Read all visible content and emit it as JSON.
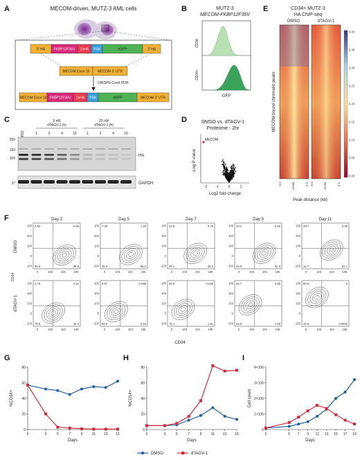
{
  "panels": {
    "A": {
      "label": "A",
      "title": "MECOM-driven, MUTZ-3 AML cells",
      "construct": [
        "5' HA",
        "FKBP12F36V",
        "2xHA",
        "P2A",
        "eGFP",
        "3' HA"
      ],
      "construct_sup": "F36V",
      "locus": [
        "MECOM Exon 16",
        "MECOM 3' UTR"
      ],
      "hdr": "CRISPR-Cas9 HDR",
      "result": [
        "MECOM Exon 16",
        "FKBP12F36V",
        "2xHA",
        "P2A",
        "eGFP",
        "MECOM 3' UTR"
      ]
    },
    "B": {
      "label": "B",
      "title1": "MUTZ-3",
      "title2": "MECOM-FKBP12F36V",
      "ylabel_top": "CD34-",
      "ylabel_bot": "CD34+",
      "xlabel": "GFP"
    },
    "C": {
      "label": "C",
      "dmso": "DMSO",
      "cond1": "5 nM",
      "cond1b": "dTAGV-1 (h)",
      "cond2": "25 nM",
      "cond2b": "dTAGV-1 (h)",
      "lanes": [
        "1",
        "2",
        "4",
        "16",
        "1",
        "2",
        "4",
        "16"
      ],
      "mw": [
        "250",
        "150",
        "100",
        "37"
      ],
      "ha": "HA",
      "gapdh": "GAPDH"
    },
    "D": {
      "label": "D",
      "title1": "DMSO vs. dTAGV-1",
      "title2": "Proteome - 2hr",
      "ylabel": "-Log P-value",
      "xlabel": "Log2 fold change",
      "highlight": "MECOM",
      "xticks": [
        "-2",
        "-1",
        "0",
        "1"
      ]
    },
    "E": {
      "label": "E",
      "title1": "CD34+ MUTZ-3",
      "title2": "HA ChIP-seq",
      "col1": "DMSO",
      "col2": "dTAGV-1",
      "ylabel": "MECOM-bound chromatin peaks",
      "xlabel": "Peak distance (kb)",
      "xticks": [
        "-0.5",
        "center",
        "0.5",
        "-0.5",
        "center",
        "0.5"
      ],
      "scale": [
        "0.40",
        "0.35",
        "0.30",
        "0.25",
        "0.20",
        "0.15",
        "0.10",
        "0.05",
        "0.00"
      ]
    },
    "F": {
      "label": "F",
      "days": [
        "Day 3",
        "Day 5",
        "Day 7",
        "Day 9",
        "Day 11"
      ],
      "row1": "DMSO",
      "row2": "dTAGV-1",
      "ylabel": "CD14",
      "xlabel": "CD34",
      "dmso_quads": [
        [
          "4.52",
          "0.59",
          "36.0",
          "58.8"
        ],
        [
          "7.26",
          "1.43",
          "35.3",
          "56.0"
        ],
        [
          "12.8",
          "0.75",
          "40.1",
          "46.4"
        ],
        [
          "13.1",
          "0.65",
          "34.0",
          "52.3"
        ],
        [
          "29.7",
          "0.90",
          "16.7",
          "52.7"
        ]
      ],
      "dtag_quads": [
        [
          "2.75",
          "0.11",
          "78.8",
          "18.4"
        ],
        [
          "8.87",
          "0.099",
          "88.5",
          "2.53"
        ],
        [
          "20.0",
          "0.045",
          "78.1",
          "1.51"
        ],
        [
          "42.7",
          "0.86",
          "54.9",
          "1.58"
        ],
        [
          "80.5",
          "0",
          "19.5",
          "0.0032"
        ]
      ],
      "yticks": [
        "10^5",
        "10^4",
        "10^3",
        "0",
        "-10^3"
      ],
      "xticks": [
        "0",
        "10^3",
        "10^4",
        "10^5"
      ]
    },
    "G": {
      "label": "G"
    },
    "H": {
      "label": "H"
    },
    "I": {
      "label": "I"
    }
  },
  "legend": {
    "dmso": "DMSO",
    "dtag": "dTAGV-1"
  },
  "colors": {
    "dmso": "#1f5fa8",
    "dtag": "#d62b3a",
    "green": "#3aa55a"
  },
  "chart_data": [
    {
      "type": "line",
      "panel": "G",
      "xlabel": "Days",
      "ylabel": "%CD34+",
      "x": [
        0,
        3,
        5,
        7,
        9,
        11,
        13,
        15
      ],
      "xticks": [
        0,
        3,
        5,
        7,
        9,
        11,
        13,
        15
      ],
      "yticks": [
        0,
        20,
        40,
        60,
        80
      ],
      "ylim": [
        0,
        80
      ],
      "series": [
        {
          "name": "DMSO",
          "values": [
            57,
            52,
            50,
            45,
            52,
            55,
            54,
            62
          ]
        },
        {
          "name": "dTAGV-1",
          "values": [
            57,
            20,
            3,
            2,
            1,
            0.5,
            0.5,
            0.5
          ]
        }
      ]
    },
    {
      "type": "line",
      "panel": "H",
      "xlabel": "Days",
      "ylabel": "%CD14+",
      "x": [
        0,
        3,
        5,
        7,
        9,
        11,
        13,
        15
      ],
      "xticks": [
        0,
        3,
        5,
        7,
        9,
        11,
        13,
        15
      ],
      "yticks": [
        0,
        20,
        40,
        60,
        80
      ],
      "ylim": [
        0,
        80
      ],
      "series": [
        {
          "name": "DMSO",
          "values": [
            5,
            5,
            6,
            12,
            18,
            28,
            17,
            13
          ]
        },
        {
          "name": "dTAGV-1",
          "values": [
            5,
            5,
            8,
            17,
            37,
            82,
            75,
            76
          ]
        }
      ]
    },
    {
      "type": "line",
      "panel": "I",
      "xlabel": "Days",
      "ylabel": "Cell count",
      "x": [
        0,
        5,
        7,
        9,
        11,
        13,
        15,
        17,
        19
      ],
      "xticks": [
        0,
        5,
        7,
        9,
        11,
        13,
        15,
        17,
        19
      ],
      "yticks": [
        "0",
        "1×10^6",
        "2×10^6",
        "3×10^6",
        "4×10^6"
      ],
      "ylim": [
        0,
        4000000
      ],
      "series": [
        {
          "name": "DMSO",
          "values": [
            100000,
            200000,
            350000,
            500000,
            850000,
            1300000,
            2000000,
            2400000,
            3200000
          ]
        },
        {
          "name": "dTAGV-1",
          "values": [
            100000,
            450000,
            800000,
            1200000,
            1550000,
            1350000,
            950000,
            600000,
            350000
          ]
        }
      ]
    }
  ]
}
